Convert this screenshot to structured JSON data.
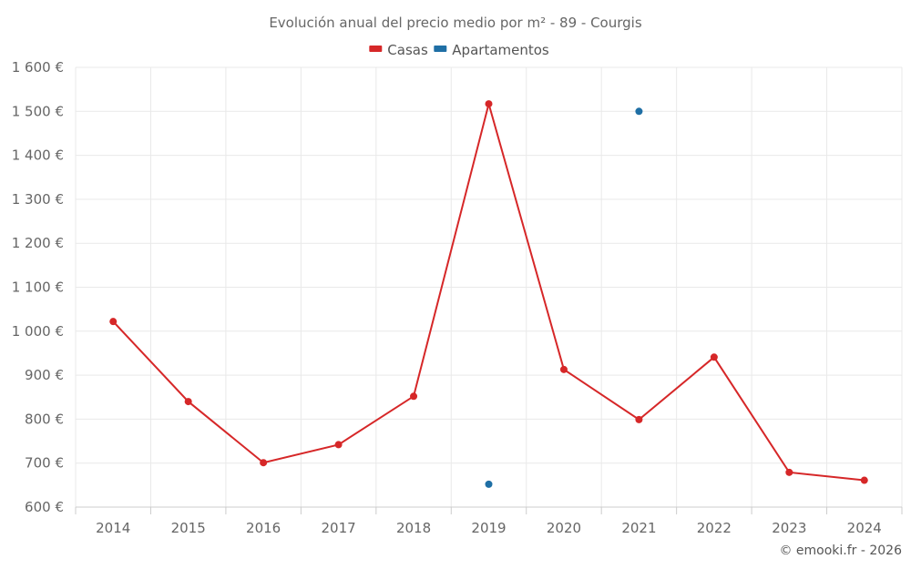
{
  "chart_data": {
    "type": "line",
    "title": "Evolución anual del precio medio por m² - 89 - Courgis",
    "categories": [
      "2014",
      "2015",
      "2016",
      "2017",
      "2018",
      "2019",
      "2020",
      "2021",
      "2022",
      "2023",
      "2024"
    ],
    "series": [
      {
        "name": "Casas",
        "color": "#d62728",
        "values": [
          1022,
          840,
          701,
          742,
          852,
          1517,
          913,
          799,
          941,
          679,
          661
        ]
      },
      {
        "name": "Apartamentos",
        "color": "#1f6fa5",
        "values": [
          null,
          null,
          null,
          null,
          null,
          652,
          null,
          1500,
          null,
          null,
          null
        ]
      }
    ],
    "ylim": [
      600,
      1600
    ],
    "yticks": [
      600,
      700,
      800,
      900,
      1000,
      1100,
      1200,
      1300,
      1400,
      1500,
      1600
    ],
    "ytick_labels": [
      "600 €",
      "700 €",
      "800 €",
      "900 €",
      "1 000 €",
      "1 100 €",
      "1 200 €",
      "1 300 €",
      "1 400 €",
      "1 500 €",
      "1 600 €"
    ],
    "grid": true,
    "legend_position": "top-center"
  },
  "credit": "© emooki.fr - 2026"
}
